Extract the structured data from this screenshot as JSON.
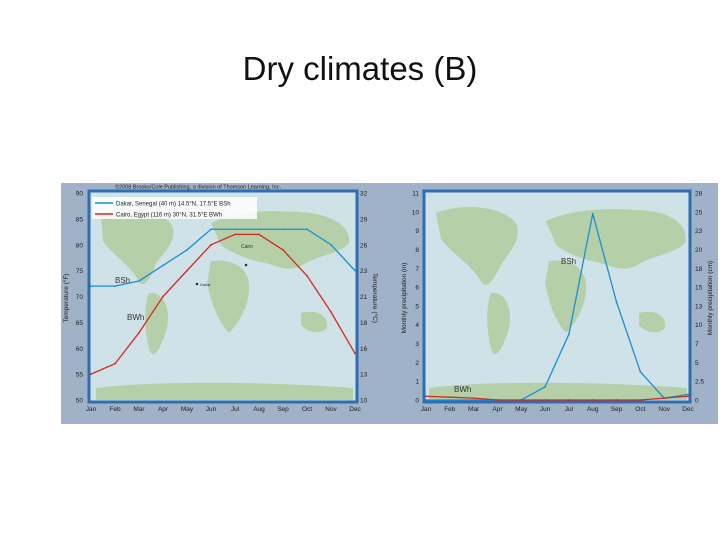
{
  "slide_title": "Dry climates (B)",
  "chart_data": [
    {
      "type": "line",
      "copyright": "©2008 Brooks/Cole Publishing, a division of Thomson Learning, Inc.",
      "categories": [
        "Jan",
        "Feb",
        "Mar",
        "Apr",
        "May",
        "Jun",
        "Jul",
        "Aug",
        "Sep",
        "Oct",
        "Nov",
        "Dec"
      ],
      "series": [
        {
          "name": "Dakar, Senegal (40 m) 14.5°N, 17.5°E BSh",
          "color": "#1a8fd0",
          "values": [
            72,
            72,
            73,
            76,
            79,
            83,
            83,
            83,
            83,
            83,
            80,
            75
          ]
        },
        {
          "name": "Cairo, Egypt (116 m) 30°N, 31.5°E BWh",
          "color": "#d42a1e",
          "values": [
            55,
            57,
            63,
            70,
            75,
            80,
            82,
            82,
            79,
            74,
            67,
            59
          ]
        }
      ],
      "ylabel": "Temperature (°F)",
      "ylim": [
        50,
        90
      ],
      "yticks": [
        "50",
        "55",
        "60",
        "65",
        "70",
        "75",
        "80",
        "85",
        "90"
      ],
      "ylabel_right": "Temperature (°C)",
      "yticks_right": [
        "10",
        "13",
        "16",
        "18",
        "21",
        "23",
        "26",
        "29",
        "32"
      ],
      "annotations": {
        "bsh": "BSh",
        "bwh": "BWh",
        "cairo": "Cairo",
        "dakar": "Dakar"
      },
      "legend_position": "top-left",
      "grid": false
    },
    {
      "type": "line",
      "categories": [
        "Jan",
        "Feb",
        "Mar",
        "Apr",
        "May",
        "Jun",
        "Jul",
        "Aug",
        "Sep",
        "Oct",
        "Nov",
        "Dec"
      ],
      "series": [
        {
          "color": "#1a8fd0",
          "values": [
            0,
            0,
            0,
            0,
            0,
            0.7,
            3.5,
            9.9,
            5.2,
            1.5,
            0.1,
            0.3
          ]
        },
        {
          "color": "#d42a1e",
          "values": [
            0.2,
            0.15,
            0.1,
            0,
            0,
            0,
            0,
            0,
            0,
            0,
            0.1,
            0.2
          ]
        }
      ],
      "ylabel": "Monthly precipitation (in)",
      "ylim": [
        0,
        11
      ],
      "yticks": [
        "0",
        "1",
        "2",
        "3",
        "4",
        "5",
        "6",
        "7",
        "8",
        "9",
        "10",
        "11"
      ],
      "ylabel_right": "Monthly precipitation (cm)",
      "yticks_right": [
        "0",
        "2.5",
        "5",
        "7",
        "10",
        "13",
        "15",
        "18",
        "20",
        "23",
        "25",
        "28"
      ],
      "annotations": {
        "bsh": "BSh",
        "bwh": "BWh"
      },
      "grid": false
    }
  ]
}
